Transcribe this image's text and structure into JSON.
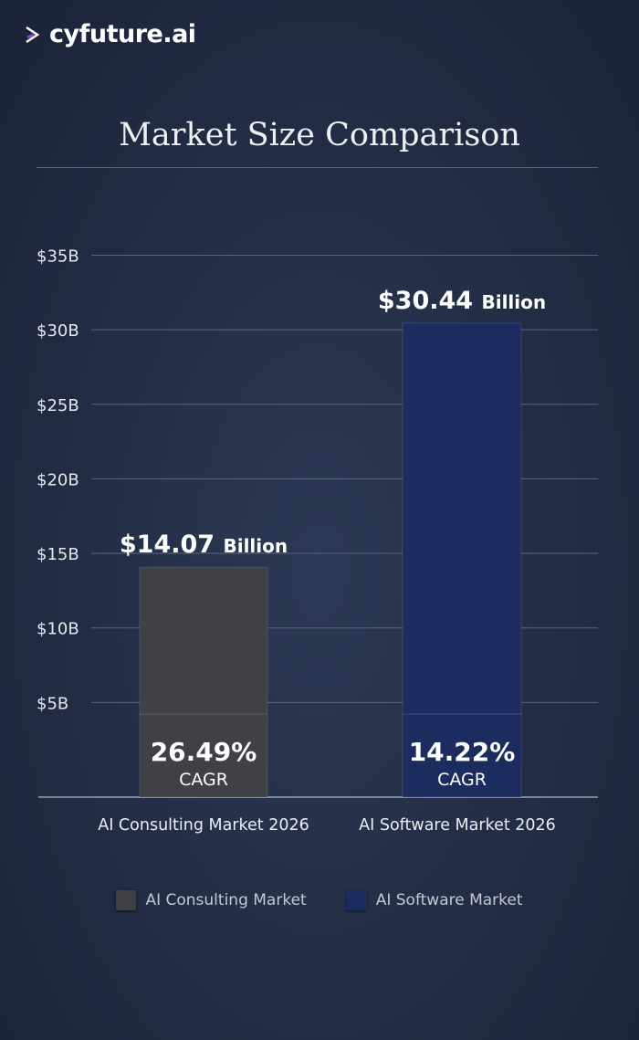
{
  "brand": {
    "name": "cyfuture.ai",
    "logo_icon": "play-chevron-icon"
  },
  "chart_data": {
    "type": "bar",
    "title": "Market Size Comparison",
    "categories": [
      "AI Consulting Market 2026",
      "AI Software Market 2026"
    ],
    "values": [
      14.07,
      30.44
    ],
    "value_labels": [
      {
        "amount": "$14.07",
        "unit": "Billion"
      },
      {
        "amount": "$30.44",
        "unit": "Billion"
      }
    ],
    "cagr": [
      {
        "value": "26.49%",
        "label": "CAGR"
      },
      {
        "value": "14.22%",
        "label": "CAGR"
      }
    ],
    "colors": [
      "#3f4147",
      "#1d2c5e"
    ],
    "ylim": [
      0,
      35
    ],
    "yticks": [
      5,
      10,
      15,
      20,
      25,
      30,
      35
    ],
    "ytick_labels": [
      "$5B",
      "$10B",
      "$15B",
      "$20B",
      "$25B",
      "$30B",
      "$35B"
    ],
    "grid": true,
    "legend": {
      "placement": "bottom",
      "entries": [
        "AI Consulting Market",
        "AI Software Market"
      ]
    }
  }
}
